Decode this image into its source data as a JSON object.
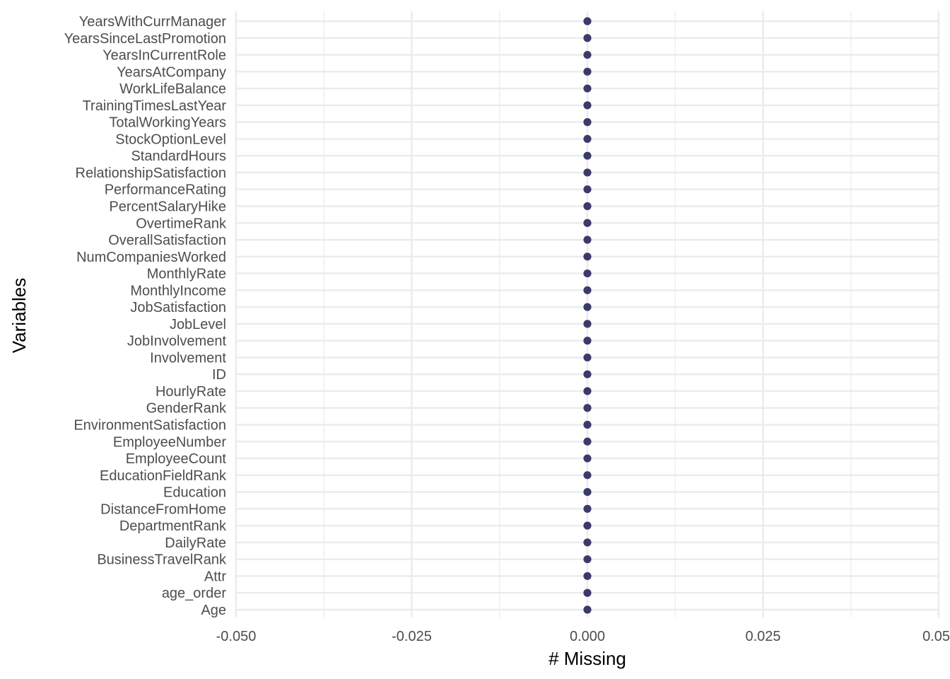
{
  "chart_data": {
    "type": "scatter",
    "title": "",
    "xlabel": "# Missing",
    "ylabel": "Variables",
    "xlim": [
      -0.05,
      0.05
    ],
    "x_ticks": [
      "-0.050",
      "-0.025",
      "0.000",
      "0.025",
      "0.05"
    ],
    "x_tick_values": [
      -0.05,
      -0.025,
      0,
      0.025,
      0.05
    ],
    "grid": true,
    "point_color": "#3b3b6b",
    "categories": [
      "Age",
      "age_order",
      "Attr",
      "BusinessTravelRank",
      "DailyRate",
      "DepartmentRank",
      "DistanceFromHome",
      "Education",
      "EducationFieldRank",
      "EmployeeCount",
      "EmployeeNumber",
      "EnvironmentSatisfaction",
      "GenderRank",
      "HourlyRate",
      "ID",
      "Involvement",
      "JobInvolvement",
      "JobLevel",
      "JobSatisfaction",
      "MonthlyIncome",
      "MonthlyRate",
      "NumCompaniesWorked",
      "OverallSatisfaction",
      "OvertimeRank",
      "PercentSalaryHike",
      "PerformanceRating",
      "RelationshipSatisfaction",
      "StandardHours",
      "StockOptionLevel",
      "TotalWorkingYears",
      "TrainingTimesLastYear",
      "WorkLifeBalance",
      "YearsAtCompany",
      "YearsInCurrentRole",
      "YearsSinceLastPromotion",
      "YearsWithCurrManager"
    ],
    "values": [
      0,
      0,
      0,
      0,
      0,
      0,
      0,
      0,
      0,
      0,
      0,
      0,
      0,
      0,
      0,
      0,
      0,
      0,
      0,
      0,
      0,
      0,
      0,
      0,
      0,
      0,
      0,
      0,
      0,
      0,
      0,
      0,
      0,
      0,
      0,
      0
    ]
  }
}
